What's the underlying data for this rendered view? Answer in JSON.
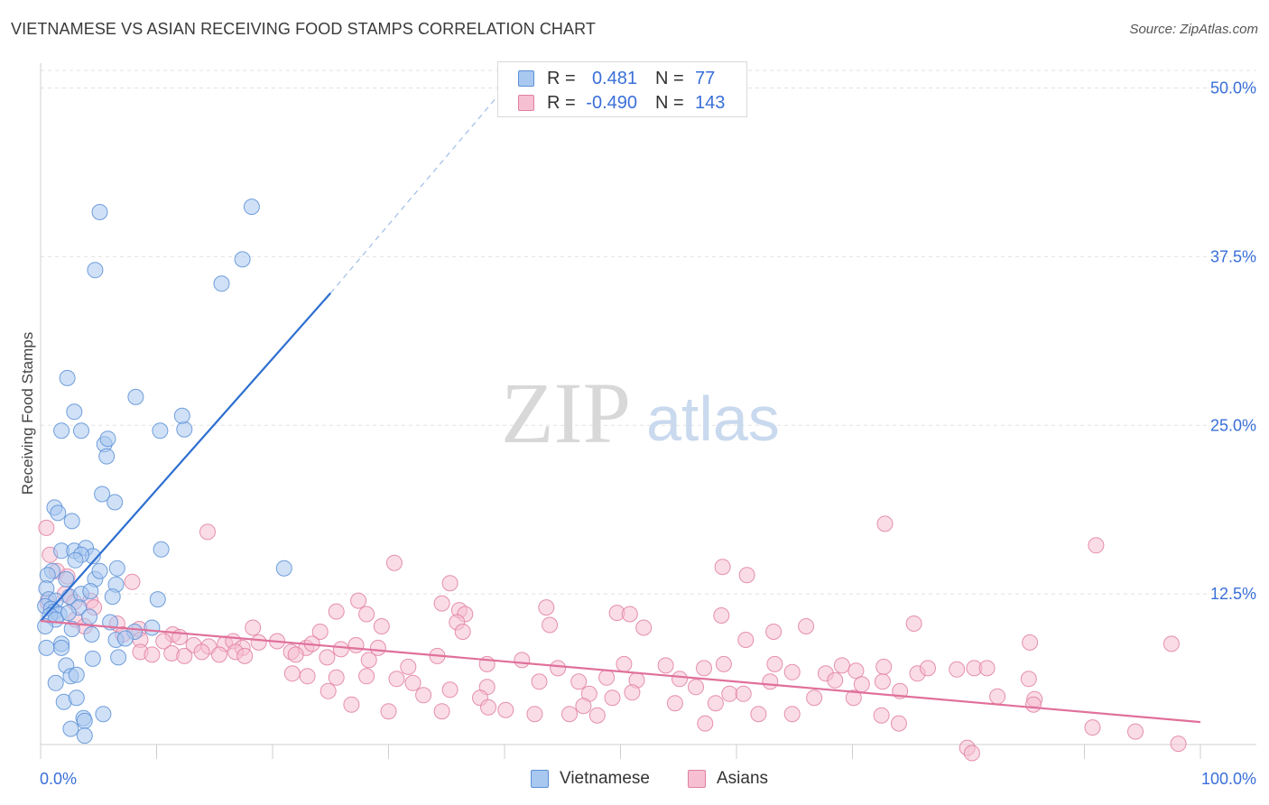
{
  "header": {
    "title": "VIETNAMESE VS ASIAN RECEIVING FOOD STAMPS CORRELATION CHART",
    "source": "Source: ZipAtlas.com"
  },
  "watermark": {
    "zip": "ZIP",
    "atlas": "atlas"
  },
  "legend": {
    "rows": [
      {
        "r_label": "R =",
        "r_value": "0.481",
        "n_label": "N =",
        "n_value": "77",
        "color": "#a9c8f0",
        "border": "#5b8fd6"
      },
      {
        "r_label": "R =",
        "r_value": "-0.490",
        "n_label": "N =",
        "n_value": "143",
        "color": "#f6c0d2",
        "border": "#e07fa0"
      }
    ],
    "bottom": [
      {
        "label": "Vietnamese",
        "color": "#a9c8f0",
        "border": "#5b8fd6"
      },
      {
        "label": "Asians",
        "color": "#f6c0d2",
        "border": "#e07fa0"
      }
    ]
  },
  "chart_data": {
    "type": "scatter",
    "title": "VIETNAMESE VS ASIAN RECEIVING FOOD STAMPS CORRELATION CHART",
    "xlabel": "",
    "ylabel": "Receiving Food Stamps",
    "xlim": [
      0,
      100
    ],
    "ylim": [
      0,
      52.5
    ],
    "x_tick_labels": [
      "0.0%",
      "100.0%"
    ],
    "y_ticks": [
      12.5,
      25.0,
      37.5,
      50.0
    ],
    "y_tick_labels": [
      "12.5%",
      "25.0%",
      "37.5%",
      "50.0%"
    ],
    "grid": true,
    "legend_position": "top-center",
    "series": [
      {
        "name": "Vietnamese",
        "color": "#5b8fd6",
        "fill": "#a9c8f0",
        "r": 0.481,
        "n": 77,
        "trend": {
          "x0": 0,
          "y0": 10.5,
          "x1": 25,
          "y1": 34.8,
          "dash_x1": 40,
          "dash_y1": 50.0
        },
        "points": [
          [
            5.1,
            40.8
          ],
          [
            18.2,
            41.2
          ],
          [
            4.7,
            36.5
          ],
          [
            17.4,
            37.3
          ],
          [
            15.6,
            35.5
          ],
          [
            2.3,
            28.5
          ],
          [
            2.9,
            26.0
          ],
          [
            8.2,
            27.1
          ],
          [
            1.8,
            24.6
          ],
          [
            3.5,
            24.6
          ],
          [
            5.5,
            23.6
          ],
          [
            5.8,
            24.0
          ],
          [
            10.3,
            24.6
          ],
          [
            12.4,
            24.7
          ],
          [
            12.2,
            25.7
          ],
          [
            5.7,
            22.7
          ],
          [
            5.3,
            19.9
          ],
          [
            6.4,
            19.3
          ],
          [
            1.2,
            18.9
          ],
          [
            1.5,
            18.5
          ],
          [
            2.7,
            17.9
          ],
          [
            1.8,
            15.7
          ],
          [
            2.9,
            15.7
          ],
          [
            3.9,
            15.9
          ],
          [
            4.5,
            15.3
          ],
          [
            3.5,
            15.4
          ],
          [
            3.0,
            15.0
          ],
          [
            10.4,
            15.8
          ],
          [
            1.0,
            14.2
          ],
          [
            0.6,
            13.9
          ],
          [
            2.2,
            13.6
          ],
          [
            4.7,
            13.6
          ],
          [
            5.1,
            14.2
          ],
          [
            6.6,
            14.4
          ],
          [
            6.5,
            13.2
          ],
          [
            21.0,
            14.4
          ],
          [
            0.5,
            12.9
          ],
          [
            0.7,
            12.1
          ],
          [
            1.3,
            12.0
          ],
          [
            2.5,
            12.3
          ],
          [
            3.5,
            12.5
          ],
          [
            3.3,
            11.5
          ],
          [
            4.3,
            12.7
          ],
          [
            6.2,
            12.3
          ],
          [
            10.1,
            12.1
          ],
          [
            0.4,
            11.6
          ],
          [
            0.9,
            11.4
          ],
          [
            1.2,
            11.2
          ],
          [
            1.6,
            11.0
          ],
          [
            2.4,
            11.1
          ],
          [
            0.8,
            10.9
          ],
          [
            1.3,
            10.6
          ],
          [
            0.4,
            10.1
          ],
          [
            2.7,
            9.9
          ],
          [
            6.0,
            10.4
          ],
          [
            8.1,
            9.7
          ],
          [
            4.4,
            9.5
          ],
          [
            6.5,
            9.1
          ],
          [
            1.8,
            8.8
          ],
          [
            0.5,
            8.5
          ],
          [
            1.8,
            8.5
          ],
          [
            4.5,
            7.7
          ],
          [
            6.7,
            7.8
          ],
          [
            2.2,
            7.2
          ],
          [
            1.3,
            5.9
          ],
          [
            2.6,
            6.4
          ],
          [
            3.1,
            6.5
          ],
          [
            2.0,
            4.5
          ],
          [
            3.1,
            4.8
          ],
          [
            5.4,
            3.6
          ],
          [
            3.7,
            3.3
          ],
          [
            3.8,
            3.1
          ],
          [
            2.6,
            2.5
          ],
          [
            3.8,
            2.0
          ],
          [
            7.3,
            9.2
          ],
          [
            9.6,
            10.0
          ],
          [
            4.2,
            10.8
          ]
        ]
      },
      {
        "name": "Asians",
        "color": "#e07fa0",
        "fill": "#f6c0d2",
        "r": -0.49,
        "n": 143,
        "trend": {
          "x0": 0,
          "y0": 10.5,
          "x1": 100,
          "y1": 3.0
        },
        "points": [
          [
            0.5,
            17.4
          ],
          [
            0.8,
            15.4
          ],
          [
            14.4,
            17.1
          ],
          [
            72.8,
            17.7
          ],
          [
            91.0,
            16.1
          ],
          [
            30.5,
            14.8
          ],
          [
            58.8,
            14.5
          ],
          [
            60.9,
            13.9
          ],
          [
            1.4,
            14.2
          ],
          [
            2.3,
            13.8
          ],
          [
            7.9,
            13.4
          ],
          [
            35.3,
            13.3
          ],
          [
            2.1,
            12.5
          ],
          [
            4.3,
            12.0
          ],
          [
            0.6,
            11.9
          ],
          [
            2.9,
            11.9
          ],
          [
            4.6,
            11.5
          ],
          [
            27.4,
            12.0
          ],
          [
            34.6,
            11.8
          ],
          [
            36.1,
            11.3
          ],
          [
            36.6,
            11.0
          ],
          [
            25.5,
            11.2
          ],
          [
            28.1,
            11.0
          ],
          [
            43.6,
            11.5
          ],
          [
            49.7,
            11.1
          ],
          [
            50.8,
            11.0
          ],
          [
            58.7,
            10.9
          ],
          [
            3.0,
            10.6
          ],
          [
            3.8,
            10.1
          ],
          [
            6.6,
            10.3
          ],
          [
            8.5,
            9.9
          ],
          [
            11.4,
            9.5
          ],
          [
            18.3,
            10.0
          ],
          [
            24.1,
            9.7
          ],
          [
            29.4,
            10.1
          ],
          [
            35.9,
            10.4
          ],
          [
            36.4,
            9.7
          ],
          [
            43.9,
            10.2
          ],
          [
            52.0,
            10.0
          ],
          [
            60.8,
            9.1
          ],
          [
            63.2,
            9.7
          ],
          [
            66.0,
            10.1
          ],
          [
            75.3,
            10.3
          ],
          [
            85.3,
            8.9
          ],
          [
            97.5,
            8.8
          ],
          [
            7.1,
            9.5
          ],
          [
            8.6,
            9.1
          ],
          [
            10.6,
            9.0
          ],
          [
            12.0,
            9.3
          ],
          [
            13.2,
            8.7
          ],
          [
            14.5,
            8.6
          ],
          [
            15.9,
            8.8
          ],
          [
            16.6,
            9.0
          ],
          [
            17.4,
            8.5
          ],
          [
            18.8,
            8.9
          ],
          [
            20.4,
            9.0
          ],
          [
            21.6,
            8.2
          ],
          [
            22.9,
            8.5
          ],
          [
            23.4,
            8.8
          ],
          [
            25.9,
            8.4
          ],
          [
            27.2,
            8.7
          ],
          [
            29.1,
            8.5
          ],
          [
            8.6,
            8.2
          ],
          [
            9.6,
            8.0
          ],
          [
            11.3,
            8.1
          ],
          [
            12.4,
            7.9
          ],
          [
            13.9,
            8.2
          ],
          [
            15.4,
            8.0
          ],
          [
            16.8,
            8.2
          ],
          [
            17.6,
            7.9
          ],
          [
            22.0,
            8.0
          ],
          [
            24.7,
            7.8
          ],
          [
            28.3,
            7.6
          ],
          [
            31.7,
            7.1
          ],
          [
            34.2,
            7.9
          ],
          [
            38.5,
            7.3
          ],
          [
            41.5,
            7.6
          ],
          [
            44.6,
            7.0
          ],
          [
            50.3,
            7.3
          ],
          [
            53.9,
            7.2
          ],
          [
            57.2,
            7.0
          ],
          [
            58.9,
            7.3
          ],
          [
            63.3,
            7.3
          ],
          [
            64.8,
            6.7
          ],
          [
            67.7,
            6.6
          ],
          [
            69.1,
            7.2
          ],
          [
            70.3,
            6.8
          ],
          [
            72.7,
            7.1
          ],
          [
            75.6,
            6.6
          ],
          [
            76.5,
            7.0
          ],
          [
            79.0,
            6.9
          ],
          [
            80.5,
            7.0
          ],
          [
            81.6,
            7.0
          ],
          [
            21.7,
            6.6
          ],
          [
            23.0,
            6.4
          ],
          [
            25.5,
            6.3
          ],
          [
            28.1,
            6.4
          ],
          [
            30.7,
            6.2
          ],
          [
            32.1,
            5.9
          ],
          [
            35.3,
            5.4
          ],
          [
            38.5,
            5.6
          ],
          [
            43.0,
            6.0
          ],
          [
            46.4,
            6.0
          ],
          [
            48.8,
            6.3
          ],
          [
            51.4,
            6.1
          ],
          [
            55.1,
            6.2
          ],
          [
            56.5,
            5.6
          ],
          [
            62.9,
            6.0
          ],
          [
            68.5,
            6.1
          ],
          [
            70.8,
            5.8
          ],
          [
            72.6,
            6.0
          ],
          [
            85.2,
            6.2
          ],
          [
            24.8,
            5.3
          ],
          [
            33.0,
            5.0
          ],
          [
            37.9,
            4.8
          ],
          [
            47.3,
            5.1
          ],
          [
            49.3,
            4.8
          ],
          [
            51.0,
            5.2
          ],
          [
            59.4,
            5.1
          ],
          [
            60.6,
            5.1
          ],
          [
            66.7,
            4.8
          ],
          [
            70.1,
            4.8
          ],
          [
            74.1,
            5.3
          ],
          [
            82.5,
            4.9
          ],
          [
            85.7,
            4.7
          ],
          [
            26.8,
            4.3
          ],
          [
            30.0,
            3.8
          ],
          [
            34.6,
            3.8
          ],
          [
            38.6,
            4.1
          ],
          [
            40.1,
            3.9
          ],
          [
            42.6,
            3.6
          ],
          [
            45.6,
            3.6
          ],
          [
            46.8,
            4.2
          ],
          [
            48.0,
            3.5
          ],
          [
            54.7,
            4.4
          ],
          [
            58.2,
            4.4
          ],
          [
            61.9,
            3.6
          ],
          [
            64.8,
            3.6
          ],
          [
            72.5,
            3.5
          ],
          [
            74.0,
            2.9
          ],
          [
            57.3,
            2.9
          ],
          [
            85.6,
            4.3
          ],
          [
            90.7,
            2.6
          ],
          [
            94.4,
            2.3
          ],
          [
            98.1,
            1.4
          ],
          [
            79.9,
            1.1
          ],
          [
            80.3,
            0.7
          ]
        ]
      }
    ]
  }
}
